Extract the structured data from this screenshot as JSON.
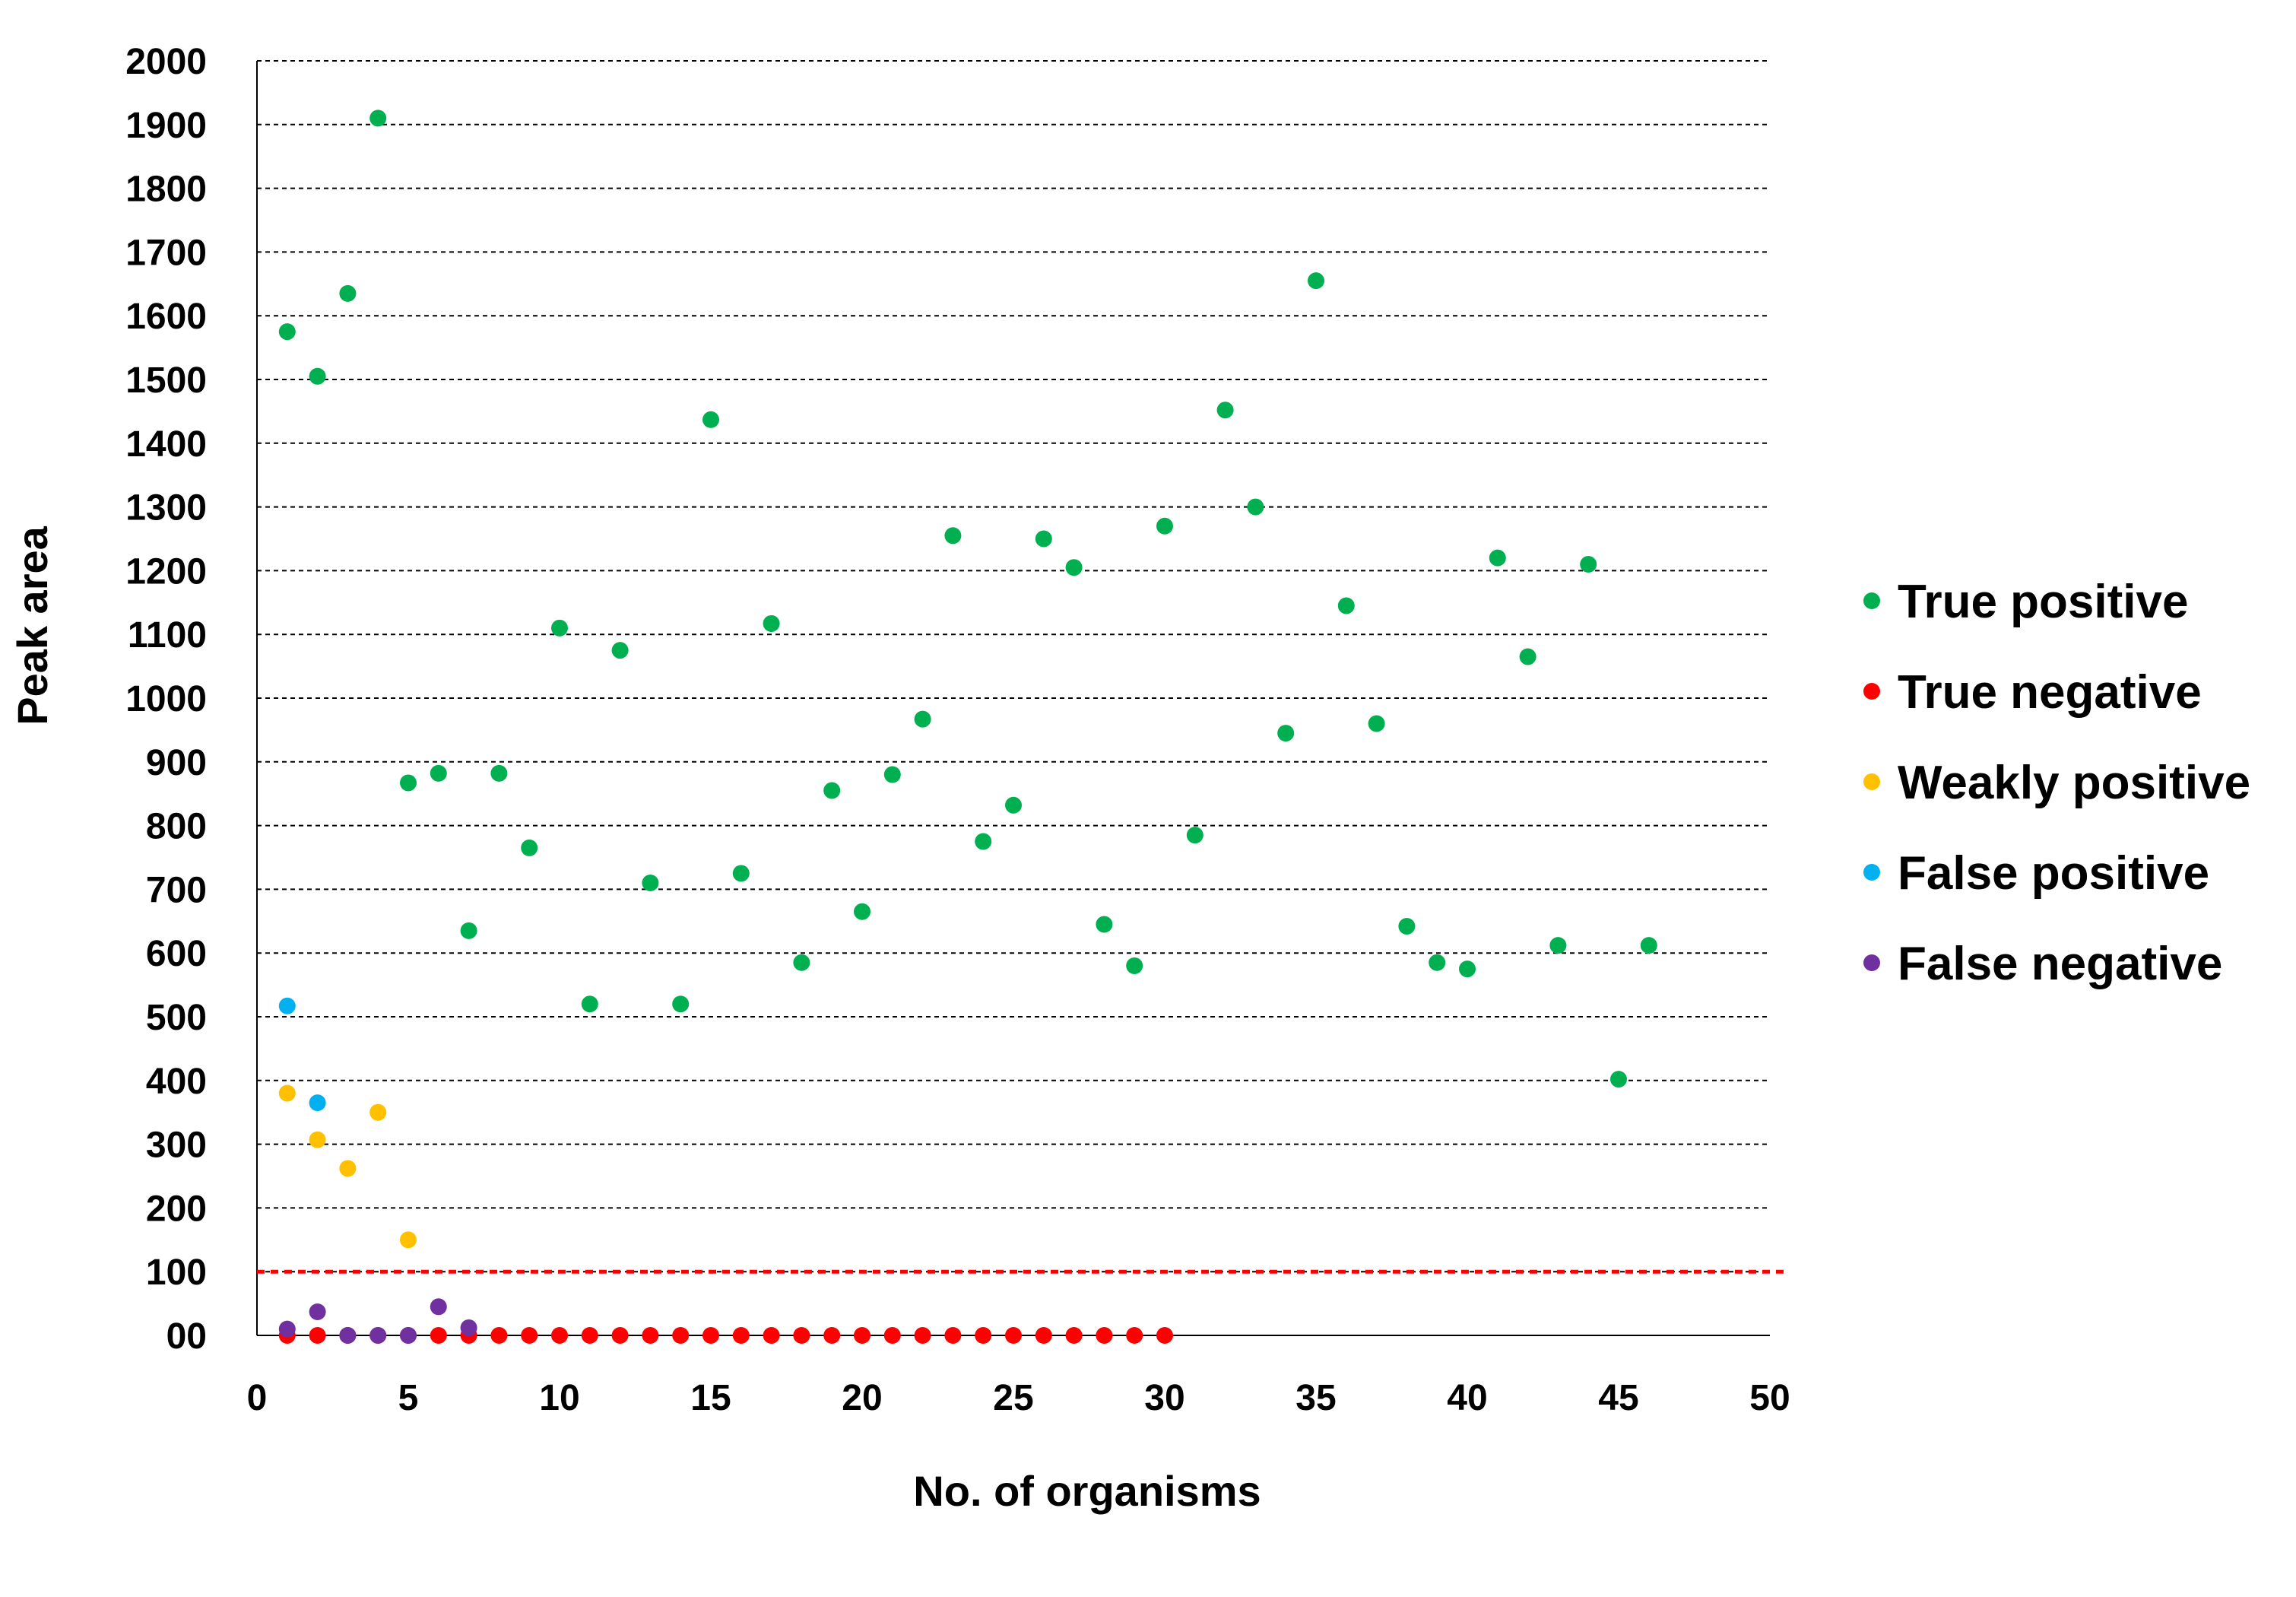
{
  "chart_data": {
    "type": "scatter",
    "xlabel": "No. of organisms",
    "ylabel": "Peak area",
    "xlim": [
      0,
      50
    ],
    "ylim": [
      0,
      2000
    ],
    "x_ticks": [
      0,
      5,
      10,
      15,
      20,
      25,
      30,
      35,
      40,
      45,
      50
    ],
    "y_ticks": [
      0,
      100,
      200,
      300,
      400,
      500,
      600,
      700,
      800,
      900,
      1000,
      1100,
      1200,
      1300,
      1400,
      1500,
      1600,
      1700,
      1800,
      1900,
      2000
    ],
    "y_tick_labels": [
      "00",
      "100",
      "200",
      "300",
      "400",
      "500",
      "600",
      "700",
      "800",
      "900",
      "1000",
      "1100",
      "1200",
      "1300",
      "1400",
      "1500",
      "1600",
      "1700",
      "1800",
      "1900",
      "2000"
    ],
    "grid": "horizontal dashed",
    "threshold_line": {
      "y": 100,
      "color": "#ff0000",
      "style": "dashed"
    },
    "legend_position": "right",
    "series": [
      {
        "name": "True positive",
        "color": "#00b050",
        "points": [
          [
            1,
            1575
          ],
          [
            2,
            1505
          ],
          [
            3,
            1635
          ],
          [
            4,
            1910
          ],
          [
            5,
            867
          ],
          [
            6,
            882
          ],
          [
            7,
            635
          ],
          [
            8,
            882
          ],
          [
            9,
            765
          ],
          [
            10,
            1110
          ],
          [
            11,
            520
          ],
          [
            12,
            1075
          ],
          [
            13,
            710
          ],
          [
            14,
            520
          ],
          [
            15,
            1437
          ],
          [
            16,
            725
          ],
          [
            17,
            1117
          ],
          [
            18,
            585
          ],
          [
            19,
            855
          ],
          [
            20,
            665
          ],
          [
            21,
            880
          ],
          [
            22,
            967
          ],
          [
            23,
            1255
          ],
          [
            24,
            775
          ],
          [
            25,
            832
          ],
          [
            26,
            1250
          ],
          [
            27,
            1205
          ],
          [
            28,
            645
          ],
          [
            29,
            580
          ],
          [
            30,
            1270
          ],
          [
            31,
            785
          ],
          [
            32,
            1452
          ],
          [
            33,
            1300
          ],
          [
            34,
            945
          ],
          [
            35,
            1655
          ],
          [
            36,
            1145
          ],
          [
            37,
            960
          ],
          [
            38,
            642
          ],
          [
            39,
            585
          ],
          [
            40,
            575
          ],
          [
            41,
            1220
          ],
          [
            42,
            1065
          ],
          [
            43,
            612
          ],
          [
            44,
            1210
          ],
          [
            45,
            402
          ],
          [
            46,
            612
          ]
        ]
      },
      {
        "name": "True negative",
        "color": "#ff0000",
        "points": [
          [
            1,
            0
          ],
          [
            2,
            0
          ],
          [
            3,
            0
          ],
          [
            4,
            0
          ],
          [
            5,
            0
          ],
          [
            6,
            0
          ],
          [
            7,
            0
          ],
          [
            8,
            0
          ],
          [
            9,
            0
          ],
          [
            10,
            0
          ],
          [
            11,
            0
          ],
          [
            12,
            0
          ],
          [
            13,
            0
          ],
          [
            14,
            0
          ],
          [
            15,
            0
          ],
          [
            16,
            0
          ],
          [
            17,
            0
          ],
          [
            18,
            0
          ],
          [
            19,
            0
          ],
          [
            20,
            0
          ],
          [
            21,
            0
          ],
          [
            22,
            0
          ],
          [
            23,
            0
          ],
          [
            24,
            0
          ],
          [
            25,
            0
          ],
          [
            26,
            0
          ],
          [
            27,
            0
          ],
          [
            28,
            0
          ],
          [
            29,
            0
          ],
          [
            30,
            0
          ]
        ]
      },
      {
        "name": "Weakly positive",
        "color": "#ffc000",
        "points": [
          [
            1,
            380
          ],
          [
            2,
            307
          ],
          [
            3,
            262
          ],
          [
            4,
            350
          ],
          [
            5,
            150
          ]
        ]
      },
      {
        "name": "False positive",
        "color": "#00b0f0",
        "points": [
          [
            1,
            517
          ],
          [
            2,
            365
          ]
        ]
      },
      {
        "name": "False negative",
        "color": "#7030a0",
        "points": [
          [
            1,
            10
          ],
          [
            2,
            37
          ],
          [
            3,
            0
          ],
          [
            4,
            0
          ],
          [
            5,
            0
          ],
          [
            6,
            45
          ],
          [
            7,
            12
          ]
        ]
      }
    ]
  }
}
